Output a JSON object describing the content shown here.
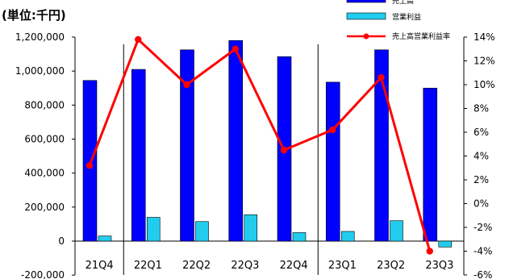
{
  "unit_label": "(単位:千円)",
  "chart_data": {
    "type": "bar",
    "categories": [
      "21Q4",
      "22Q1",
      "22Q2",
      "22Q3",
      "22Q4",
      "23Q1",
      "23Q2",
      "23Q3"
    ],
    "series": [
      {
        "name": "売上高",
        "kind": "bar",
        "axis": "left",
        "color": "#0000ff",
        "values": [
          945000,
          1010000,
          1125000,
          1180000,
          1085000,
          935000,
          1125000,
          900000
        ]
      },
      {
        "name": "営業利益",
        "kind": "bar",
        "axis": "left",
        "color": "#22ccee",
        "values": [
          30000,
          140000,
          115000,
          155000,
          50000,
          57000,
          120000,
          -35000
        ]
      },
      {
        "name": "売上高営業利益率",
        "kind": "line",
        "axis": "right",
        "color": "#ff0000",
        "values": [
          3.2,
          13.8,
          10.0,
          13.0,
          4.5,
          6.2,
          10.6,
          -4.0
        ]
      }
    ],
    "y_left": {
      "ylim": [
        -200000,
        1200000
      ],
      "tick_labels": [
        "-200,000",
        "0",
        "200,000",
        "400,000",
        "600,000",
        "800,000",
        "1,000,000",
        "1,200,000"
      ]
    },
    "y_right": {
      "ylim": [
        -6,
        14
      ],
      "tick_labels": [
        "-6%",
        "-4%",
        "-2%",
        "0%",
        "2%",
        "4%",
        "6%",
        "8%",
        "10%",
        "12%",
        "14%"
      ]
    },
    "year_dividers_after": [
      "21Q4",
      "22Q4"
    ],
    "legend_position": "top-right",
    "grid": false
  }
}
